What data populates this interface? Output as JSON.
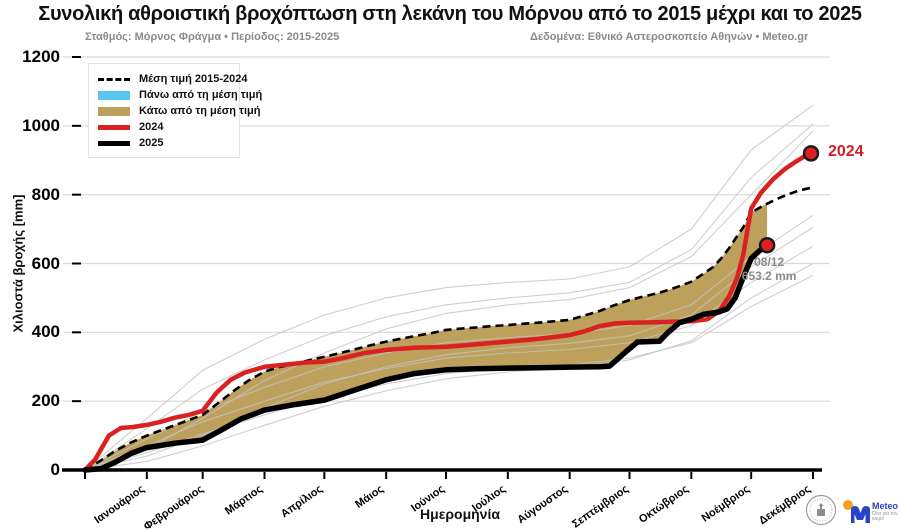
{
  "title": "Συνολική αθροιστική βροχόπτωση στη λεκάνη του Μόρνου από το 2015 μέχρι και το 2025",
  "subtitle_left": "Σταθμός: Μόρνος Φράγμα • Περίοδος: 2015-2025",
  "subtitle_right": "Δεδομένα: Εθνικό Αστεροσκοπείο Αθηνών • Meteo.gr",
  "footer": {
    "meteo_name": "Meteo",
    "meteo_tagline": "Όλα για τον καιρό"
  },
  "chart_data": {
    "type": "line",
    "title": "Συνολική αθροιστική βροχόπτωση στη λεκάνη του Μόρνου από το 2015 μέχρι και το 2025",
    "xlabel": "Ημερομηνία",
    "ylabel": "Χιλιοστά βροχής [mm]",
    "ylim": [
      0,
      1200
    ],
    "yticks": [
      0,
      200,
      400,
      600,
      800,
      1000,
      1200
    ],
    "grid": "horizontal-light-gray",
    "legend_position": "upper-left",
    "x_categories": [
      "Ιανουάριος",
      "Φεβρουάριος",
      "Μάρτιος",
      "Απρίλιος",
      "Μάιος",
      "Ιούνιος",
      "Ιούλιος",
      "Αύγουστος",
      "Σεπτέμβριος",
      "Οκτώβριος",
      "Νοέμβριος",
      "Δεκέμβριος"
    ],
    "month_boundary_days": [
      0,
      31,
      59,
      90,
      120,
      151,
      181,
      212,
      243,
      273,
      304,
      334,
      365
    ],
    "colors": {
      "mean": "#000000",
      "above_mean_fill": "#56c7f0",
      "below_mean_fill": "#bca05c",
      "y2024": "#d92121",
      "y2025": "#000000",
      "background_years": "#c3c3c3",
      "gridline": "#d9d9d9",
      "marker_fill": "#e02020",
      "marker_edge": "#1a1a1a",
      "annotation_text": "#8a8a8a"
    },
    "legend": [
      {
        "label": "Μέση τιμή 2015-2024",
        "swatch": "dashed",
        "color": "#000000"
      },
      {
        "label": "Πάνω από τη μέση τιμή",
        "swatch": "patch",
        "color": "#56c7f0"
      },
      {
        "label": "Κάτω από τη μέση τιμή",
        "swatch": "patch",
        "color": "#bca05c"
      },
      {
        "label": "2024",
        "swatch": "line",
        "color": "#d92121"
      },
      {
        "label": "2025",
        "swatch": "line",
        "color": "#000000"
      }
    ],
    "annotation": {
      "line1": "08/12",
      "line2": "653.2 mm",
      "x_day": 342,
      "y": 653.2
    },
    "end_label": {
      "text": "2024",
      "x_day": 364,
      "y": 920,
      "color": "#d21f26"
    },
    "end_markers": [
      {
        "series": "2024",
        "x_day": 364,
        "y": 920
      },
      {
        "series": "2025",
        "x_day": 342,
        "y": 653.2
      }
    ],
    "series": [
      {
        "name": "Μέση τιμή 2015-2024",
        "role": "mean",
        "style": "dashed",
        "points": [
          [
            0,
            0
          ],
          [
            8,
            28
          ],
          [
            15,
            55
          ],
          [
            23,
            80
          ],
          [
            31,
            100
          ],
          [
            38,
            115
          ],
          [
            45,
            130
          ],
          [
            52,
            145
          ],
          [
            59,
            160
          ],
          [
            68,
            200
          ],
          [
            75,
            232
          ],
          [
            82,
            260
          ],
          [
            90,
            286
          ],
          [
            98,
            300
          ],
          [
            105,
            308
          ],
          [
            113,
            320
          ],
          [
            120,
            329
          ],
          [
            128,
            340
          ],
          [
            135,
            350
          ],
          [
            143,
            362
          ],
          [
            151,
            373
          ],
          [
            159,
            382
          ],
          [
            166,
            390
          ],
          [
            174,
            398
          ],
          [
            181,
            407
          ],
          [
            189,
            411
          ],
          [
            196,
            414
          ],
          [
            204,
            418
          ],
          [
            212,
            421
          ],
          [
            220,
            425
          ],
          [
            227,
            428
          ],
          [
            235,
            432
          ],
          [
            243,
            436
          ],
          [
            250,
            448
          ],
          [
            258,
            462
          ],
          [
            265,
            478
          ],
          [
            273,
            494
          ],
          [
            280,
            504
          ],
          [
            288,
            515
          ],
          [
            296,
            530
          ],
          [
            304,
            547
          ],
          [
            310,
            570
          ],
          [
            315,
            590
          ],
          [
            319,
            615
          ],
          [
            323,
            645
          ],
          [
            327,
            680
          ],
          [
            330,
            705
          ],
          [
            334,
            748
          ],
          [
            340,
            768
          ],
          [
            346,
            785
          ],
          [
            352,
            800
          ],
          [
            358,
            812
          ],
          [
            364,
            820
          ]
        ]
      },
      {
        "name": "2024",
        "role": "line2024",
        "style": "solid-thick",
        "points": [
          [
            0,
            0
          ],
          [
            5,
            30
          ],
          [
            12,
            100
          ],
          [
            18,
            122
          ],
          [
            24,
            125
          ],
          [
            31,
            131
          ],
          [
            38,
            140
          ],
          [
            45,
            152
          ],
          [
            52,
            160
          ],
          [
            59,
            172
          ],
          [
            66,
            225
          ],
          [
            73,
            262
          ],
          [
            80,
            283
          ],
          [
            90,
            300
          ],
          [
            100,
            306
          ],
          [
            110,
            312
          ],
          [
            120,
            315
          ],
          [
            130,
            326
          ],
          [
            140,
            340
          ],
          [
            151,
            349
          ],
          [
            165,
            355
          ],
          [
            181,
            358
          ],
          [
            190,
            362
          ],
          [
            205,
            370
          ],
          [
            212,
            373
          ],
          [
            227,
            381
          ],
          [
            243,
            392
          ],
          [
            250,
            402
          ],
          [
            258,
            418
          ],
          [
            266,
            426
          ],
          [
            273,
            428
          ],
          [
            283,
            429
          ],
          [
            295,
            431
          ],
          [
            304,
            432
          ],
          [
            312,
            438
          ],
          [
            318,
            462
          ],
          [
            323,
            505
          ],
          [
            327,
            560
          ],
          [
            330,
            625
          ],
          [
            334,
            760
          ],
          [
            339,
            806
          ],
          [
            345,
            845
          ],
          [
            351,
            875
          ],
          [
            357,
            898
          ],
          [
            361,
            912
          ],
          [
            364,
            920
          ]
        ]
      },
      {
        "name": "2025",
        "role": "line2025",
        "style": "solid-extra-thick",
        "points": [
          [
            0,
            0
          ],
          [
            8,
            4
          ],
          [
            15,
            22
          ],
          [
            23,
            48
          ],
          [
            31,
            65
          ],
          [
            45,
            78
          ],
          [
            59,
            87
          ],
          [
            68,
            115
          ],
          [
            78,
            148
          ],
          [
            90,
            174
          ],
          [
            105,
            190
          ],
          [
            120,
            203
          ],
          [
            133,
            228
          ],
          [
            151,
            262
          ],
          [
            165,
            280
          ],
          [
            181,
            291
          ],
          [
            196,
            294
          ],
          [
            212,
            296
          ],
          [
            227,
            297
          ],
          [
            243,
            299
          ],
          [
            258,
            300
          ],
          [
            263,
            302
          ],
          [
            267,
            322
          ],
          [
            271,
            343
          ],
          [
            277,
            372
          ],
          [
            288,
            374
          ],
          [
            292,
            398
          ],
          [
            298,
            428
          ],
          [
            304,
            438
          ],
          [
            310,
            452
          ],
          [
            317,
            458
          ],
          [
            322,
            468
          ],
          [
            326,
            500
          ],
          [
            330,
            560
          ],
          [
            334,
            615
          ],
          [
            338,
            636
          ],
          [
            342,
            653.2
          ]
        ]
      }
    ],
    "background_years": {
      "note": "unlabeled thin gray cumulative curves for individual years 2015-2024, values estimated at month boundaries",
      "series": [
        [
          0,
          150,
          290,
          380,
          450,
          500,
          530,
          545,
          555,
          590,
          700,
          930,
          1060
        ],
        [
          0,
          120,
          235,
          320,
          390,
          445,
          480,
          500,
          515,
          545,
          640,
          850,
          1005
        ],
        [
          0,
          60,
          150,
          260,
          340,
          410,
          455,
          480,
          495,
          530,
          620,
          800,
          985
        ],
        [
          0,
          90,
          170,
          240,
          300,
          340,
          370,
          385,
          395,
          420,
          480,
          620,
          740
        ],
        [
          0,
          40,
          100,
          180,
          250,
          300,
          335,
          355,
          368,
          390,
          450,
          590,
          705
        ],
        [
          0,
          70,
          140,
          200,
          255,
          295,
          325,
          340,
          350,
          370,
          420,
          545,
          650
        ],
        [
          0,
          25,
          70,
          130,
          185,
          230,
          265,
          285,
          298,
          320,
          375,
          500,
          600
        ],
        [
          0,
          50,
          105,
          160,
          210,
          250,
          280,
          295,
          305,
          325,
          370,
          475,
          565
        ]
      ]
    },
    "fill_between": {
      "upper": "mean",
      "lower": "2025",
      "color_when_below": "#bca05c",
      "color_when_above": "#56c7f0"
    }
  }
}
